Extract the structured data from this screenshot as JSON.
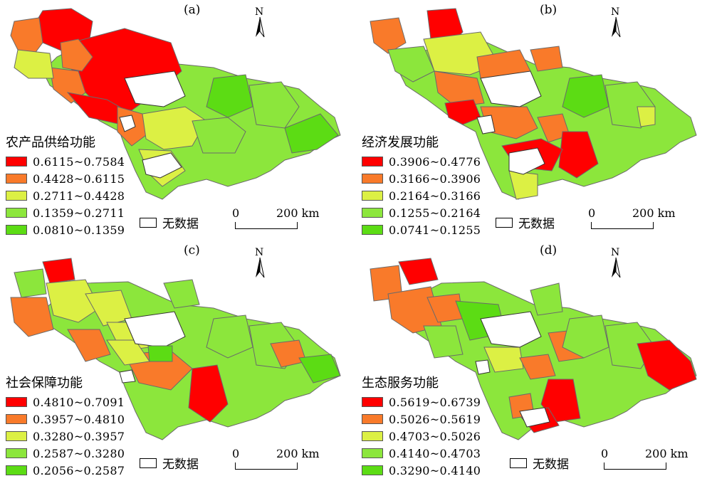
{
  "figure": {
    "nodata_label": "无数据",
    "scale": {
      "zero": "0",
      "max": "200 km"
    },
    "north_label": "N",
    "colors": [
      "#ff0000",
      "#f97a2a",
      "#dcf044",
      "#8ce63c",
      "#5cdc14"
    ]
  },
  "panels": [
    {
      "label": "(a)",
      "legend_title": "农产品供给功能",
      "classes": [
        "0.6115~0.7584",
        "0.4428~0.6115",
        "0.2711~0.4428",
        "0.1359~0.2711",
        "0.0810~0.1359"
      ]
    },
    {
      "label": "(b)",
      "legend_title": "经济发展功能",
      "classes": [
        "0.3906~0.4776",
        "0.3166~0.3906",
        "0.2164~0.3166",
        "0.1255~0.2164",
        "0.0741~0.1255"
      ]
    },
    {
      "label": "(c)",
      "legend_title": "社会保障功能",
      "classes": [
        "0.4810~0.7091",
        "0.3957~0.4810",
        "0.3280~0.3957",
        "0.2587~0.3280",
        "0.2056~0.2587"
      ]
    },
    {
      "label": "(d)",
      "legend_title": "生态服务功能",
      "classes": [
        "0.5619~0.6739",
        "0.5026~0.5619",
        "0.4703~0.5026",
        "0.4140~0.4703",
        "0.3290~0.4140"
      ]
    }
  ]
}
